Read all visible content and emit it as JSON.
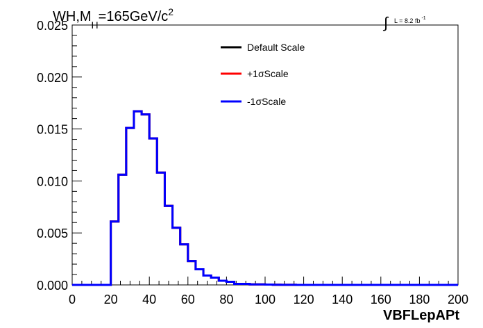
{
  "chart_data": {
    "type": "line",
    "title_main": "WH,M",
    "title_sub": "H",
    "title_rest": "=165GeV/c",
    "title_sup": "2",
    "lumi_text": "L = 8.2 fb",
    "lumi_sup": "-1",
    "xlabel": "VBFLepAPt",
    "ylabel": "",
    "xlim": [
      0,
      200
    ],
    "ylim": [
      0,
      0.025
    ],
    "x_ticks": [
      "0",
      "20",
      "40",
      "60",
      "80",
      "100",
      "120",
      "140",
      "160",
      "180",
      "200"
    ],
    "y_ticks": [
      "0.000",
      "0.005",
      "0.010",
      "0.015",
      "0.020",
      "0.025"
    ],
    "grid": false,
    "legend_position": "top-center",
    "bin_edges": [
      0,
      4,
      8,
      12,
      16,
      20,
      24,
      28,
      32,
      36,
      40,
      44,
      48,
      52,
      56,
      60,
      64,
      68,
      72,
      76,
      80,
      84,
      88,
      92,
      96,
      100,
      104,
      108,
      112,
      116,
      120,
      124,
      128,
      132,
      136,
      140,
      144,
      148,
      152,
      156,
      160,
      164,
      168,
      172,
      176,
      180,
      184,
      188,
      192,
      196,
      200
    ],
    "series": [
      {
        "name": "Default Scale",
        "color": "#000000",
        "values": [
          0,
          0,
          0,
          0,
          0,
          0.0061,
          0.0106,
          0.0151,
          0.0167,
          0.0164,
          0.0141,
          0.0108,
          0.0076,
          0.0055,
          0.0039,
          0.0023,
          0.0015,
          0.0009,
          0.0007,
          0.0004,
          0.0003,
          0.0001,
          0.0001,
          5e-05,
          5e-05,
          3e-05,
          2e-05,
          1e-05,
          1e-05,
          0,
          0,
          0,
          0,
          0,
          0,
          0,
          0,
          0,
          0,
          0,
          0,
          0,
          0,
          0,
          0,
          0,
          0,
          0,
          0,
          0
        ]
      },
      {
        "name": "+1σScale",
        "color": "#ff0000",
        "values": [
          0,
          0,
          0,
          0,
          0,
          0.0061,
          0.0106,
          0.0151,
          0.0167,
          0.0164,
          0.0141,
          0.0108,
          0.0076,
          0.0055,
          0.0039,
          0.0023,
          0.0015,
          0.0009,
          0.0007,
          0.0004,
          0.0003,
          0.0001,
          0.0001,
          5e-05,
          5e-05,
          3e-05,
          2e-05,
          1e-05,
          1e-05,
          0,
          0,
          0,
          0,
          0,
          0,
          0,
          0,
          0,
          0,
          0,
          0,
          0,
          0,
          0,
          0,
          0,
          0,
          0,
          0,
          0
        ]
      },
      {
        "name": "-1σScale",
        "color": "#0000ff",
        "values": [
          0,
          0,
          0,
          0,
          0,
          0.0061,
          0.0106,
          0.0151,
          0.0167,
          0.0164,
          0.0141,
          0.0108,
          0.0076,
          0.0055,
          0.0039,
          0.0023,
          0.0015,
          0.0009,
          0.0007,
          0.0004,
          0.0003,
          0.0001,
          0.0001,
          5e-05,
          5e-05,
          3e-05,
          2e-05,
          1e-05,
          1e-05,
          0,
          0,
          0,
          0,
          0,
          0,
          0,
          0,
          0,
          0,
          0,
          0,
          0,
          0,
          0,
          0,
          0,
          0,
          0,
          0,
          0
        ]
      }
    ]
  }
}
